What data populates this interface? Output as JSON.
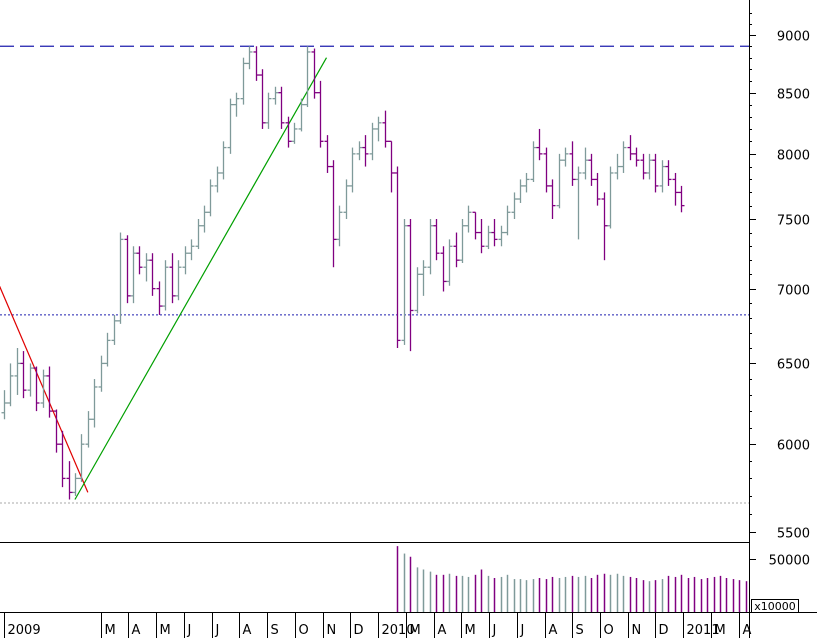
{
  "chart_data": [
    {
      "type": "ohlc",
      "title": "",
      "xlabel": "",
      "ylabel": "",
      "ylim": [
        5470,
        9250
      ],
      "y_scale": "log",
      "grid": false,
      "legend": "none",
      "y_ticks": [
        {
          "value": 5500,
          "label": "5500"
        },
        {
          "value": 6000,
          "label": "6000"
        },
        {
          "value": 6500,
          "label": "6500"
        },
        {
          "value": 7000,
          "label": "7000"
        },
        {
          "value": 7500,
          "label": "7500"
        },
        {
          "value": 8000,
          "label": "8000"
        },
        {
          "value": 8500,
          "label": "8500"
        },
        {
          "value": 9000,
          "label": "9000"
        }
      ],
      "x_ticks": [
        "2009",
        "M",
        "A",
        "M",
        "J",
        "J",
        "A",
        "S",
        "O",
        "N",
        "D",
        "2010",
        "M",
        "A",
        "M",
        "J",
        "J",
        "A",
        "S",
        "O",
        "N",
        "D",
        "2011",
        "M",
        "A"
      ],
      "x_tick_weeks": [
        0,
        15,
        19.3,
        23.6,
        27.9,
        32.2,
        36.5,
        40.8,
        45.1,
        49.4,
        53.7,
        58,
        62.3,
        66.6,
        70.9,
        75.2,
        79.5,
        83.8,
        88.1,
        92.4,
        96.7,
        101,
        105.3,
        109.6,
        113.9
      ],
      "colors": {
        "up": "#7f9a9a",
        "down": "#800080"
      },
      "reference_lines": [
        {
          "name": "resistance",
          "value": 8900,
          "style": "dashed",
          "color": "#1f1faf"
        },
        {
          "name": "support",
          "value": 6820,
          "style": "dotted",
          "color": "#1f1faf"
        },
        {
          "name": "floor",
          "value": 5660,
          "style": "dotted",
          "color": "#aaaaaa"
        }
      ],
      "trend_lines": [
        {
          "name": "downtrend",
          "color": "#e00000",
          "from": {
            "week": -1,
            "value": 7050
          },
          "to": {
            "week": 13,
            "value": 5720
          }
        },
        {
          "name": "uptrend",
          "color": "#00a000",
          "from": {
            "week": 11,
            "value": 5680
          },
          "to": {
            "week": 50,
            "value": 8800
          }
        }
      ],
      "bars": [
        [
          6190,
          6330,
          6150,
          6250
        ],
        [
          6250,
          6500,
          6230,
          6420
        ],
        [
          6420,
          6600,
          6300,
          6500
        ],
        [
          6500,
          6580,
          6280,
          6330
        ],
        [
          6330,
          6500,
          6290,
          6470
        ],
        [
          6470,
          6480,
          6200,
          6250
        ],
        [
          6250,
          6460,
          6220,
          6420
        ],
        [
          6420,
          6480,
          6160,
          6200
        ],
        [
          6200,
          6210,
          5950,
          6000
        ],
        [
          6000,
          6080,
          5750,
          5800
        ],
        [
          5800,
          5900,
          5680,
          5720
        ],
        [
          5720,
          5830,
          5700,
          5800
        ],
        [
          5800,
          6060,
          5780,
          6000
        ],
        [
          6000,
          6200,
          5980,
          6150
        ],
        [
          6150,
          6400,
          6100,
          6350
        ],
        [
          6350,
          6550,
          6320,
          6500
        ],
        [
          6500,
          6700,
          6480,
          6650
        ],
        [
          6650,
          6820,
          6620,
          6780
        ],
        [
          6780,
          7400,
          6760,
          7350
        ],
        [
          7350,
          7380,
          6900,
          6950
        ],
        [
          6950,
          7300,
          6900,
          7250
        ],
        [
          7250,
          7300,
          7100,
          7150
        ],
        [
          7150,
          7250,
          7050,
          7200
        ],
        [
          7200,
          7250,
          6950,
          7000
        ],
        [
          7000,
          7050,
          6820,
          6880
        ],
        [
          6880,
          7200,
          6850,
          7150
        ],
        [
          7150,
          7250,
          6900,
          6950
        ],
        [
          6950,
          7200,
          6920,
          7150
        ],
        [
          7150,
          7300,
          7100,
          7250
        ],
        [
          7250,
          7350,
          7200,
          7300
        ],
        [
          7300,
          7500,
          7280,
          7450
        ],
        [
          7450,
          7600,
          7400,
          7550
        ],
        [
          7550,
          7800,
          7520,
          7750
        ],
        [
          7750,
          7900,
          7700,
          7850
        ],
        [
          7850,
          8100,
          7800,
          8050
        ],
        [
          8050,
          8450,
          8000,
          8400
        ],
        [
          8400,
          8500,
          8300,
          8450
        ],
        [
          8450,
          8800,
          8400,
          8750
        ],
        [
          8750,
          8900,
          8700,
          8850
        ],
        [
          8850,
          8900,
          8600,
          8650
        ],
        [
          8650,
          8700,
          8200,
          8250
        ],
        [
          8250,
          8500,
          8200,
          8450
        ],
        [
          8450,
          8550,
          8400,
          8500
        ],
        [
          8500,
          8550,
          8200,
          8250
        ],
        [
          8250,
          8300,
          8050,
          8100
        ],
        [
          8100,
          8250,
          8080,
          8200
        ],
        [
          8200,
          8450,
          8180,
          8400
        ],
        [
          8400,
          8900,
          8380,
          8850
        ],
        [
          8850,
          8880,
          8450,
          8500
        ],
        [
          8500,
          8600,
          8050,
          8100
        ],
        [
          8100,
          8150,
          7850,
          7900
        ],
        [
          7900,
          7950,
          7150,
          7350
        ],
        [
          7350,
          7600,
          7300,
          7550
        ],
        [
          7550,
          7800,
          7500,
          7750
        ],
        [
          7750,
          8050,
          7700,
          8000
        ],
        [
          8000,
          8100,
          7950,
          8050
        ],
        [
          8050,
          8150,
          7900,
          8000
        ],
        [
          8000,
          8250,
          7950,
          8200
        ],
        [
          8200,
          8300,
          8100,
          8250
        ],
        [
          8250,
          8350,
          8050,
          8100
        ],
        [
          8100,
          8100,
          7700,
          7850
        ],
        [
          7850,
          7900,
          6600,
          6650
        ],
        [
          6650,
          7500,
          6620,
          7450
        ],
        [
          7450,
          7500,
          6580,
          6850
        ],
        [
          6850,
          7150,
          6830,
          7100
        ],
        [
          7100,
          7200,
          6950,
          7150
        ],
        [
          7150,
          7500,
          7100,
          7450
        ],
        [
          7450,
          7500,
          7200,
          7250
        ],
        [
          7250,
          7300,
          6980,
          7050
        ],
        [
          7050,
          7350,
          7020,
          7300
        ],
        [
          7300,
          7400,
          7150,
          7200
        ],
        [
          7200,
          7500,
          7180,
          7450
        ],
        [
          7450,
          7600,
          7400,
          7550
        ],
        [
          7550,
          7550,
          7350,
          7400
        ],
        [
          7400,
          7500,
          7250,
          7300
        ],
        [
          7300,
          7450,
          7280,
          7400
        ],
        [
          7400,
          7500,
          7300,
          7350
        ],
        [
          7350,
          7450,
          7300,
          7400
        ],
        [
          7400,
          7600,
          7380,
          7550
        ],
        [
          7550,
          7700,
          7500,
          7650
        ],
        [
          7650,
          7800,
          7620,
          7750
        ],
        [
          7750,
          7850,
          7700,
          7800
        ],
        [
          7800,
          8100,
          7780,
          8050
        ],
        [
          8050,
          8200,
          7950,
          8000
        ],
        [
          8000,
          8050,
          7700,
          7750
        ],
        [
          7750,
          7800,
          7500,
          7600
        ],
        [
          7600,
          8000,
          7580,
          7950
        ],
        [
          7950,
          8050,
          7900,
          8000
        ],
        [
          8000,
          8100,
          7750,
          7800
        ],
        [
          7800,
          7900,
          7350,
          7850
        ],
        [
          7850,
          8050,
          7800,
          7950
        ],
        [
          7950,
          8000,
          7750,
          7800
        ],
        [
          7800,
          7850,
          7600,
          7650
        ],
        [
          7650,
          7700,
          7200,
          7450
        ],
        [
          7450,
          7900,
          7430,
          7850
        ],
        [
          7850,
          8000,
          7800,
          7900
        ],
        [
          7900,
          8100,
          7850,
          8050
        ],
        [
          8050,
          8150,
          7950,
          8000
        ],
        [
          8000,
          8050,
          7900,
          7950
        ],
        [
          7950,
          8000,
          7800,
          7850
        ],
        [
          7850,
          8000,
          7800,
          7950
        ],
        [
          7950,
          8000,
          7700,
          7750
        ],
        [
          7750,
          7950,
          7700,
          7900
        ],
        [
          7900,
          7950,
          7750,
          7800
        ],
        [
          7800,
          7850,
          7600,
          7700
        ],
        [
          7700,
          7750,
          7550,
          7600
        ]
      ]
    },
    {
      "type": "bar",
      "title": "",
      "xlabel": "",
      "ylabel": "",
      "ylim": [
        0,
        64000
      ],
      "y_ticks": [
        {
          "value": 50000,
          "label": "50000"
        }
      ],
      "multiplier_label": "x10000",
      "first_week": 61,
      "values": [
        62000,
        55000,
        52000,
        42000,
        40000,
        38000,
        35000,
        35000,
        36000,
        34000,
        34000,
        33000,
        35000,
        40000,
        34000,
        32000,
        33000,
        35000,
        31000,
        31000,
        30000,
        31000,
        32000,
        31000,
        33000,
        32000,
        33000,
        34000,
        33000,
        34000,
        32000,
        35000,
        36000,
        35000,
        36000,
        34000,
        33000,
        32000,
        30000,
        29000,
        30000,
        31000,
        34000,
        33000,
        35000,
        32000,
        33000,
        31000,
        32000,
        33000,
        34000,
        32000,
        31000,
        30000,
        29000
      ]
    }
  ]
}
